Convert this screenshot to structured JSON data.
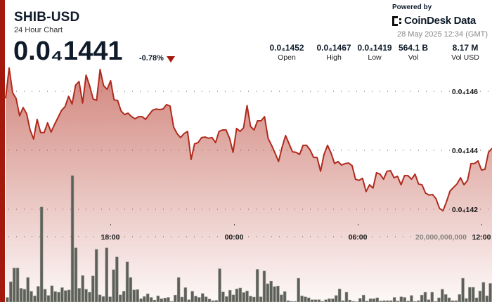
{
  "header": {
    "symbol": "SHIB-USD",
    "subtitle": "24 Hour Chart",
    "price": "0.0₄1441",
    "change": "-0.78%",
    "change_direction_icon": "triangle-down-icon",
    "powered_by": "Powered by",
    "brand": "CoinDesk Data",
    "timestamp": "28 May 2025 12:34 (GMT)"
  },
  "stats": [
    {
      "value": "0.0₄1452",
      "label": "Open"
    },
    {
      "value": "0.0₄1467",
      "label": "High"
    },
    {
      "value": "0.0₄1419",
      "label": "Low"
    },
    {
      "value": "564.1 B",
      "label": "Vol"
    },
    {
      "value": "8.17 M",
      "label": "Vol USD"
    }
  ],
  "colors": {
    "accent": "#a3190d",
    "line": "#b02a1d",
    "fill": "#c0564a",
    "volume": "#5d6058"
  },
  "chart_data": [
    {
      "type": "area",
      "series_label": "price",
      "y_ticks": [
        {
          "value": 1.46e-05,
          "label": "0.0₄146"
        },
        {
          "value": 1.44e-05,
          "label": "0.0₄144"
        },
        {
          "value": 1.42e-05,
          "label": "0.0₄142"
        }
      ],
      "x_ticks": [
        "18:00",
        "00:00",
        "06:00",
        "12:00"
      ],
      "grid": true,
      "values": [
        1.4576e-05,
        1.4679e-05,
        1.4595e-05,
        1.4576e-05,
        1.4517e-05,
        1.4545e-05,
        1.4524e-05,
        1.4469e-05,
        1.4438e-05,
        1.4505e-05,
        1.446e-05,
        1.446e-05,
        1.4493e-05,
        1.4462e-05,
        1.4488e-05,
        1.4512e-05,
        1.4536e-05,
        1.4548e-05,
        1.4583e-05,
        1.4557e-05,
        1.4621e-05,
        1.4633e-05,
        1.456e-05,
        1.4655e-05,
        1.4619e-05,
        1.4574e-05,
        1.4569e-05,
        1.4674e-05,
        1.4619e-05,
        1.4607e-05,
        1.4636e-05,
        1.4571e-05,
        1.4569e-05,
        1.4533e-05,
        1.4521e-05,
        1.4526e-05,
        1.4514e-05,
        1.4507e-05,
        1.4514e-05,
        1.4514e-05,
        1.4505e-05,
        1.4521e-05,
        1.4536e-05,
        1.454e-05,
        1.4538e-05,
        1.454e-05,
        1.4555e-05,
        1.455e-05,
        1.4479e-05,
        1.4457e-05,
        1.4443e-05,
        1.4457e-05,
        1.4464e-05,
        1.4369e-05,
        1.4422e-05,
        1.4426e-05,
        1.4443e-05,
        1.4445e-05,
        1.4441e-05,
        1.4443e-05,
        1.4426e-05,
        1.4464e-05,
        1.4469e-05,
        1.4469e-05,
        1.4441e-05,
        1.4393e-05,
        1.4474e-05,
        1.4464e-05,
        1.4476e-05,
        1.4552e-05,
        1.4481e-05,
        1.4469e-05,
        1.45e-05,
        1.45e-05,
        1.4514e-05,
        1.4441e-05,
        1.4417e-05,
        1.4391e-05,
        1.4362e-05,
        1.441e-05,
        1.445e-05,
        1.4422e-05,
        1.4395e-05,
        1.4393e-05,
        1.4386e-05,
        1.4417e-05,
        1.4417e-05,
        1.4402e-05,
        1.4376e-05,
        1.4376e-05,
        1.4329e-05,
        1.4386e-05,
        1.4417e-05,
        1.4391e-05,
        1.4355e-05,
        1.4362e-05,
        1.435e-05,
        1.4355e-05,
        1.4357e-05,
        1.4348e-05,
        1.4302e-05,
        1.4298e-05,
        1.4305e-05,
        1.426e-05,
        1.4283e-05,
        1.4272e-05,
        1.4324e-05,
        1.4319e-05,
        1.4302e-05,
        1.4329e-05,
        1.4331e-05,
        1.4307e-05,
        1.4312e-05,
        1.4283e-05,
        1.4314e-05,
        1.4314e-05,
        1.4302e-05,
        1.4319e-05,
        1.4286e-05,
        1.4283e-05,
        1.4255e-05,
        1.4248e-05,
        1.425e-05,
        1.4236e-05,
        1.4203e-05,
        1.4195e-05,
        1.4226e-05,
        1.4262e-05,
        1.4274e-05,
        1.4286e-05,
        1.4307e-05,
        1.4283e-05,
        1.4298e-05,
        1.4355e-05,
        1.4355e-05,
        1.4364e-05,
        1.4333e-05,
        1.4336e-05,
        1.4393e-05,
        1.4407e-05
      ]
    },
    {
      "type": "bar",
      "series_label": "volume",
      "y_ticks": [
        {
          "value": 20000000000,
          "label": "20,000,000,000"
        }
      ],
      "values_billions": [
        1.4,
        6.2,
        10.4,
        10.4,
        4.2,
        3.9,
        7.5,
        3.3,
        1.9,
        4.8,
        29.1,
        3.9,
        2.0,
        5.0,
        3.2,
        3.0,
        4.4,
        3.5,
        3.7,
        38.7,
        16.6,
        4.2,
        8.1,
        3.9,
        3.0,
        8.0,
        16.1,
        2.2,
        1.7,
        16.6,
        1.6,
        9.9,
        13.8,
        2.2,
        3.3,
        12.3,
        7.5,
        3.7,
        3.8,
        1.0,
        1.7,
        2.5,
        1.4,
        0.6,
        1.9,
        1.0,
        1.2,
        1.4,
        0.2,
        2.1,
        7.5,
        1.5,
        4.4,
        0.7,
        3.3,
        1.8,
        1.4,
        2.6,
        1.6,
        0.9,
        0.4,
        0.5,
        10.2,
        3.1,
        1.7,
        3.6,
        2.2,
        4.0,
        4.3,
        2.9,
        3.4,
        1.8,
        1.5,
        10.0,
        1.6,
        9.5,
        5.6,
        6.4,
        4.7,
        4.9,
        2.2,
        3.2,
        0.4,
        0.2,
        0.2,
        7.3,
        1.9,
        1.6,
        1.3,
        0.7,
        0.7,
        0.7,
        0.2,
        0.7,
        1.0,
        1.0,
        2.0,
        4.0,
        0.4,
        3.0,
        0.6,
        0.2,
        0.1,
        1.1,
        2.1,
        0.3,
        1.0,
        1.0,
        1.3,
        0.3,
        0.4,
        0.4,
        0.4,
        1.4,
        0.3,
        1.6,
        1.4,
        0.3,
        2.0,
        0.2,
        0.4,
        2.1,
        3.0,
        0.7,
        3.0,
        0.2,
        1.3,
        3.9,
        2.3,
        1.3,
        0.4,
        0.4,
        2.3,
        7.3,
        1.1,
        4.5,
        4.5,
        1.3,
        3.4,
        6.0,
        1.9,
        5.7
      ]
    }
  ]
}
